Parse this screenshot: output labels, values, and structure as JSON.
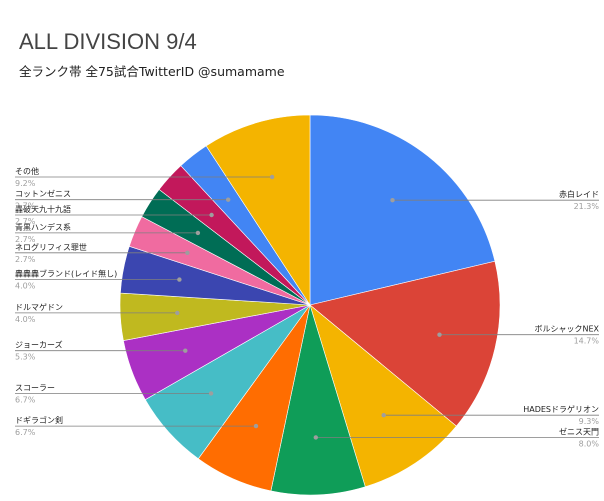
{
  "chart_data": {
    "type": "pie",
    "title": "ALL DIVISION 9/4",
    "subtitle": "全ランク帯 全75試合TwitterID @sumamame",
    "slices": [
      {
        "label": "赤白レイド",
        "value": 21.3,
        "display": "21.3%",
        "color": "#4285f4"
      },
      {
        "label": "ボルシャックNEX",
        "value": 14.7,
        "display": "14.7%",
        "color": "#db4437"
      },
      {
        "label": "HADESドラゲリオン",
        "value": 9.3,
        "display": "9.3%",
        "color": "#f4b400"
      },
      {
        "label": "ゼニス天門",
        "value": 8.0,
        "display": "8.0%",
        "color": "#0f9d58"
      },
      {
        "label": "ドギラゴン剣",
        "value": 6.7,
        "display": "6.7%",
        "color": "#ff6d01"
      },
      {
        "label": "スコーラー",
        "value": 6.7,
        "display": "6.7%",
        "color": "#46bdc6"
      },
      {
        "label": "ジョーカーズ",
        "value": 5.3,
        "display": "5.3%",
        "color": "#ab30c4"
      },
      {
        "label": "ドルマゲドン",
        "value": 4.0,
        "display": "4.0%",
        "color": "#c0b91f"
      },
      {
        "label": "轟轟轟ブランド(レイド無し)",
        "value": 4.0,
        "display": "4.0%",
        "color": "#3b46b0"
      },
      {
        "label": "ネログリフィス罪世",
        "value": 2.7,
        "display": "2.7%",
        "color": "#f06ba0"
      },
      {
        "label": "青黒ハンデス系",
        "value": 2.7,
        "display": "2.7%",
        "color": "#006d55"
      },
      {
        "label": "轟破天九十九語",
        "value": 2.7,
        "display": "2.7%",
        "color": "#c2185b"
      },
      {
        "label": "コットンゼニス",
        "value": 2.7,
        "display": "2.7%",
        "color": "#4285f4"
      },
      {
        "label": "その他",
        "value": 9.2,
        "display": "9.2%",
        "color": "#f4b400"
      }
    ]
  }
}
